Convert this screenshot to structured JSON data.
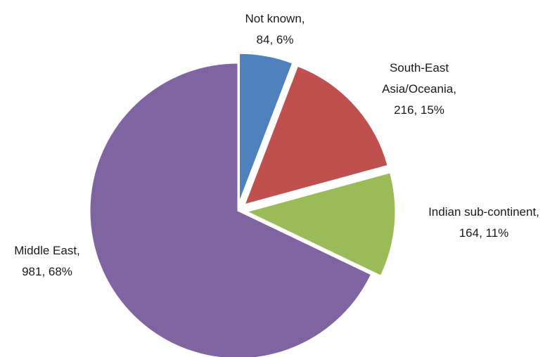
{
  "chart_data": {
    "type": "pie",
    "title": "",
    "slices": [
      {
        "label": "Not known",
        "value": 84,
        "percent": 6,
        "color": "#4f81bd",
        "exploded": true,
        "label_lines": [
          "Not known,",
          "84, 6%"
        ]
      },
      {
        "label": "South-East Asia/Oceania",
        "value": 216,
        "percent": 15,
        "color": "#c0504d",
        "exploded": true,
        "label_lines": [
          "South-East",
          "Asia/Oceania,",
          "216, 15%"
        ]
      },
      {
        "label": "Indian sub-continent",
        "value": 164,
        "percent": 11,
        "color": "#9bbb59",
        "exploded": true,
        "label_lines": [
          "Indian sub-continent,",
          "164, 11%"
        ]
      },
      {
        "label": "Middle East",
        "value": 981,
        "percent": 68,
        "color": "#8064a2",
        "exploded": false,
        "label_lines": [
          "Middle East,",
          "981, 68%"
        ]
      }
    ],
    "legend": "none",
    "data_labels": "category, value, percentage"
  }
}
